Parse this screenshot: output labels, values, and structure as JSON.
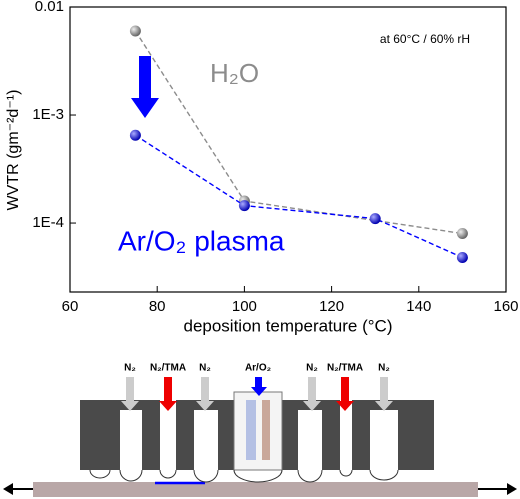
{
  "chart_data": {
    "type": "line",
    "annotation": "at 60°C / 60% rH",
    "x_label": "deposition temperature (°C)",
    "y_label": "WVTR (gm⁻²d⁻¹)",
    "y_log": true,
    "xlim": [
      60,
      160
    ],
    "xticks": [
      60,
      80,
      100,
      120,
      140,
      160
    ],
    "ylim": [
      2.3e-05,
      0.01
    ],
    "yticks": [
      {
        "value": 0.0001,
        "label": "1E-4"
      },
      {
        "value": 0.001,
        "label": "1E-3"
      },
      0.01
    ],
    "series": [
      {
        "name": "H₂O",
        "color": "#8c8c8c",
        "x": [
          75,
          100,
          150
        ],
        "values": [
          0.006,
          0.00016,
          8e-05
        ]
      },
      {
        "name": "Ar/O₂ plasma",
        "color": "#0000ff",
        "x": [
          75,
          100,
          130,
          150
        ],
        "values": [
          0.00065,
          0.000145,
          0.00011,
          4.8e-05
        ]
      }
    ]
  },
  "diagram": {
    "labels": [
      "N₂",
      "N₂/TMA",
      "N₂",
      "Ar/O₂",
      "N₂",
      "N₂/TMA",
      "N₂"
    ]
  }
}
